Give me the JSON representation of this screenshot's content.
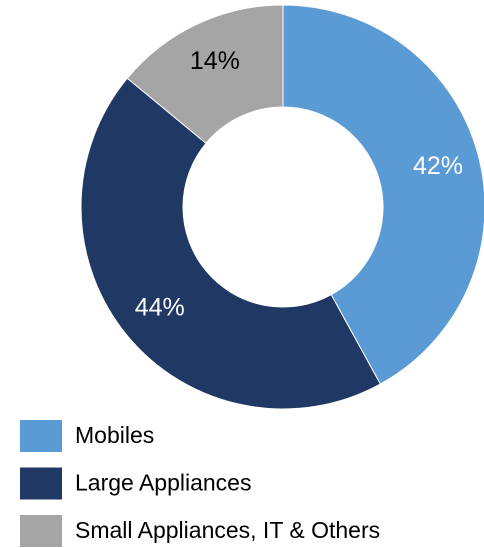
{
  "chart_data": {
    "type": "donut",
    "categories": [
      "Mobiles",
      "Large Appliances",
      "Small Appliances, IT & Others"
    ],
    "values": [
      42,
      44,
      14
    ],
    "value_labels": [
      "42%",
      "44%",
      "14%"
    ],
    "colors": [
      "#5b9bd5",
      "#203864",
      "#a5a5a5"
    ],
    "label_colors": [
      "#ffffff",
      "#ffffff",
      "#000000"
    ],
    "legend": "bottom-left"
  }
}
